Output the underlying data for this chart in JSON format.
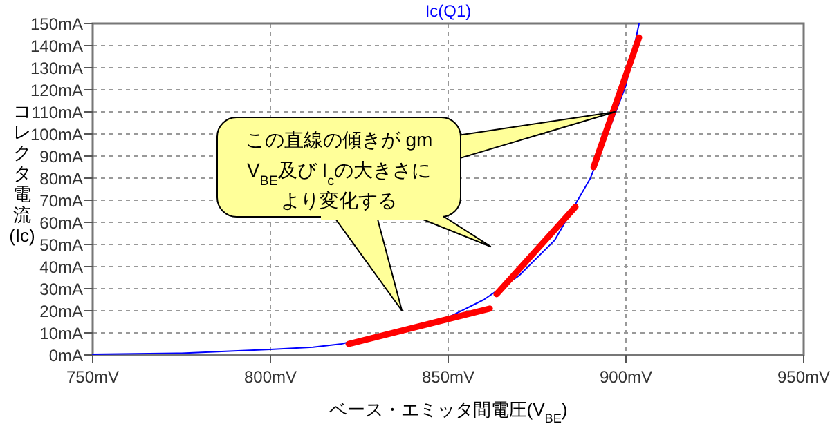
{
  "chart_data": {
    "type": "line",
    "xlabel": "ベース・エミッタ間電圧(V$_{BE}$)",
    "ylabel": "コレクタ電流(Ic)",
    "xlim": [
      750,
      950
    ],
    "xticks": [
      {
        "value": 750,
        "label": "750mV"
      },
      {
        "value": 800,
        "label": "800mV"
      },
      {
        "value": 850,
        "label": "850mV"
      },
      {
        "value": 900,
        "label": "900mV"
      },
      {
        "value": 950,
        "label": "950mV"
      }
    ],
    "ylim": [
      0,
      150
    ],
    "yticks": [
      {
        "value": 0,
        "label": "0mA"
      },
      {
        "value": 10,
        "label": "10mA"
      },
      {
        "value": 20,
        "label": "20mA"
      },
      {
        "value": 30,
        "label": "30mA"
      },
      {
        "value": 40,
        "label": "40mA"
      },
      {
        "value": 50,
        "label": "50mA"
      },
      {
        "value": 60,
        "label": "60mA"
      },
      {
        "value": 70,
        "label": "70mA"
      },
      {
        "value": 80,
        "label": "80mA"
      },
      {
        "value": 90,
        "label": "90mA"
      },
      {
        "value": 100,
        "label": "100mA"
      },
      {
        "value": 110,
        "label": "110mA"
      },
      {
        "value": 120,
        "label": "120mA"
      },
      {
        "value": 130,
        "label": "130mA"
      },
      {
        "value": 140,
        "label": "140mA"
      },
      {
        "value": 150,
        "label": "150mA"
      }
    ],
    "grid": true,
    "legend": "top",
    "series": [
      {
        "name": "Ic(Q1)",
        "color": "#0000ff",
        "x": [
          750,
          775,
          800,
          812,
          820,
          850,
          860,
          870,
          880,
          890,
          900,
          903.7
        ],
        "values": [
          0.3,
          0.8,
          2.5,
          3.5,
          5,
          17,
          25,
          36,
          52,
          80,
          122,
          150
        ]
      },
      {
        "color": "#ff0000",
        "x": [
          822,
          861.7
        ],
        "values": [
          5,
          21
        ]
      },
      {
        "color": "#ff0000",
        "x": [
          863.6,
          885.8
        ],
        "values": [
          27.5,
          67
        ]
      },
      {
        "color": "#ff0000",
        "x": [
          890.9,
          903.7
        ],
        "values": [
          85,
          143.7
        ]
      }
    ],
    "annotations": [
      "この直線の傾きが gm",
      "V$_{BE}$及び I$_{c}$の大きさに",
      "より変化する"
    ]
  }
}
